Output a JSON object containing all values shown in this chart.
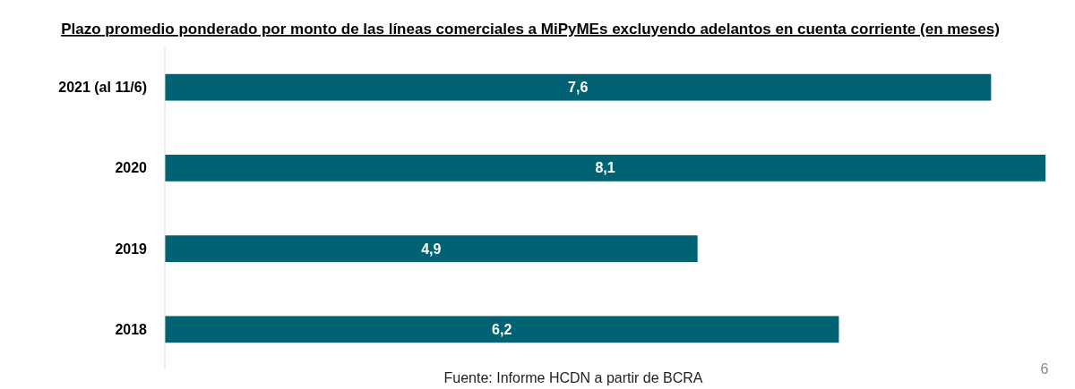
{
  "chart_data": {
    "type": "bar",
    "orientation": "horizontal",
    "title": "Plazo promedio ponderado por monto de las líneas comerciales a MiPyMEs excluyendo adelantos en cuenta corriente (en meses)",
    "categories": [
      "2021 (al 11/6)",
      "2020",
      "2019",
      "2018"
    ],
    "values": [
      7.6,
      8.1,
      4.9,
      6.2
    ],
    "value_labels": [
      "7,6",
      "8,1",
      "4,9",
      "6,2"
    ],
    "color": "#006272",
    "annotations": [
      "Fuente: Informe HCDN a partir de  BCRA",
      "6"
    ]
  }
}
